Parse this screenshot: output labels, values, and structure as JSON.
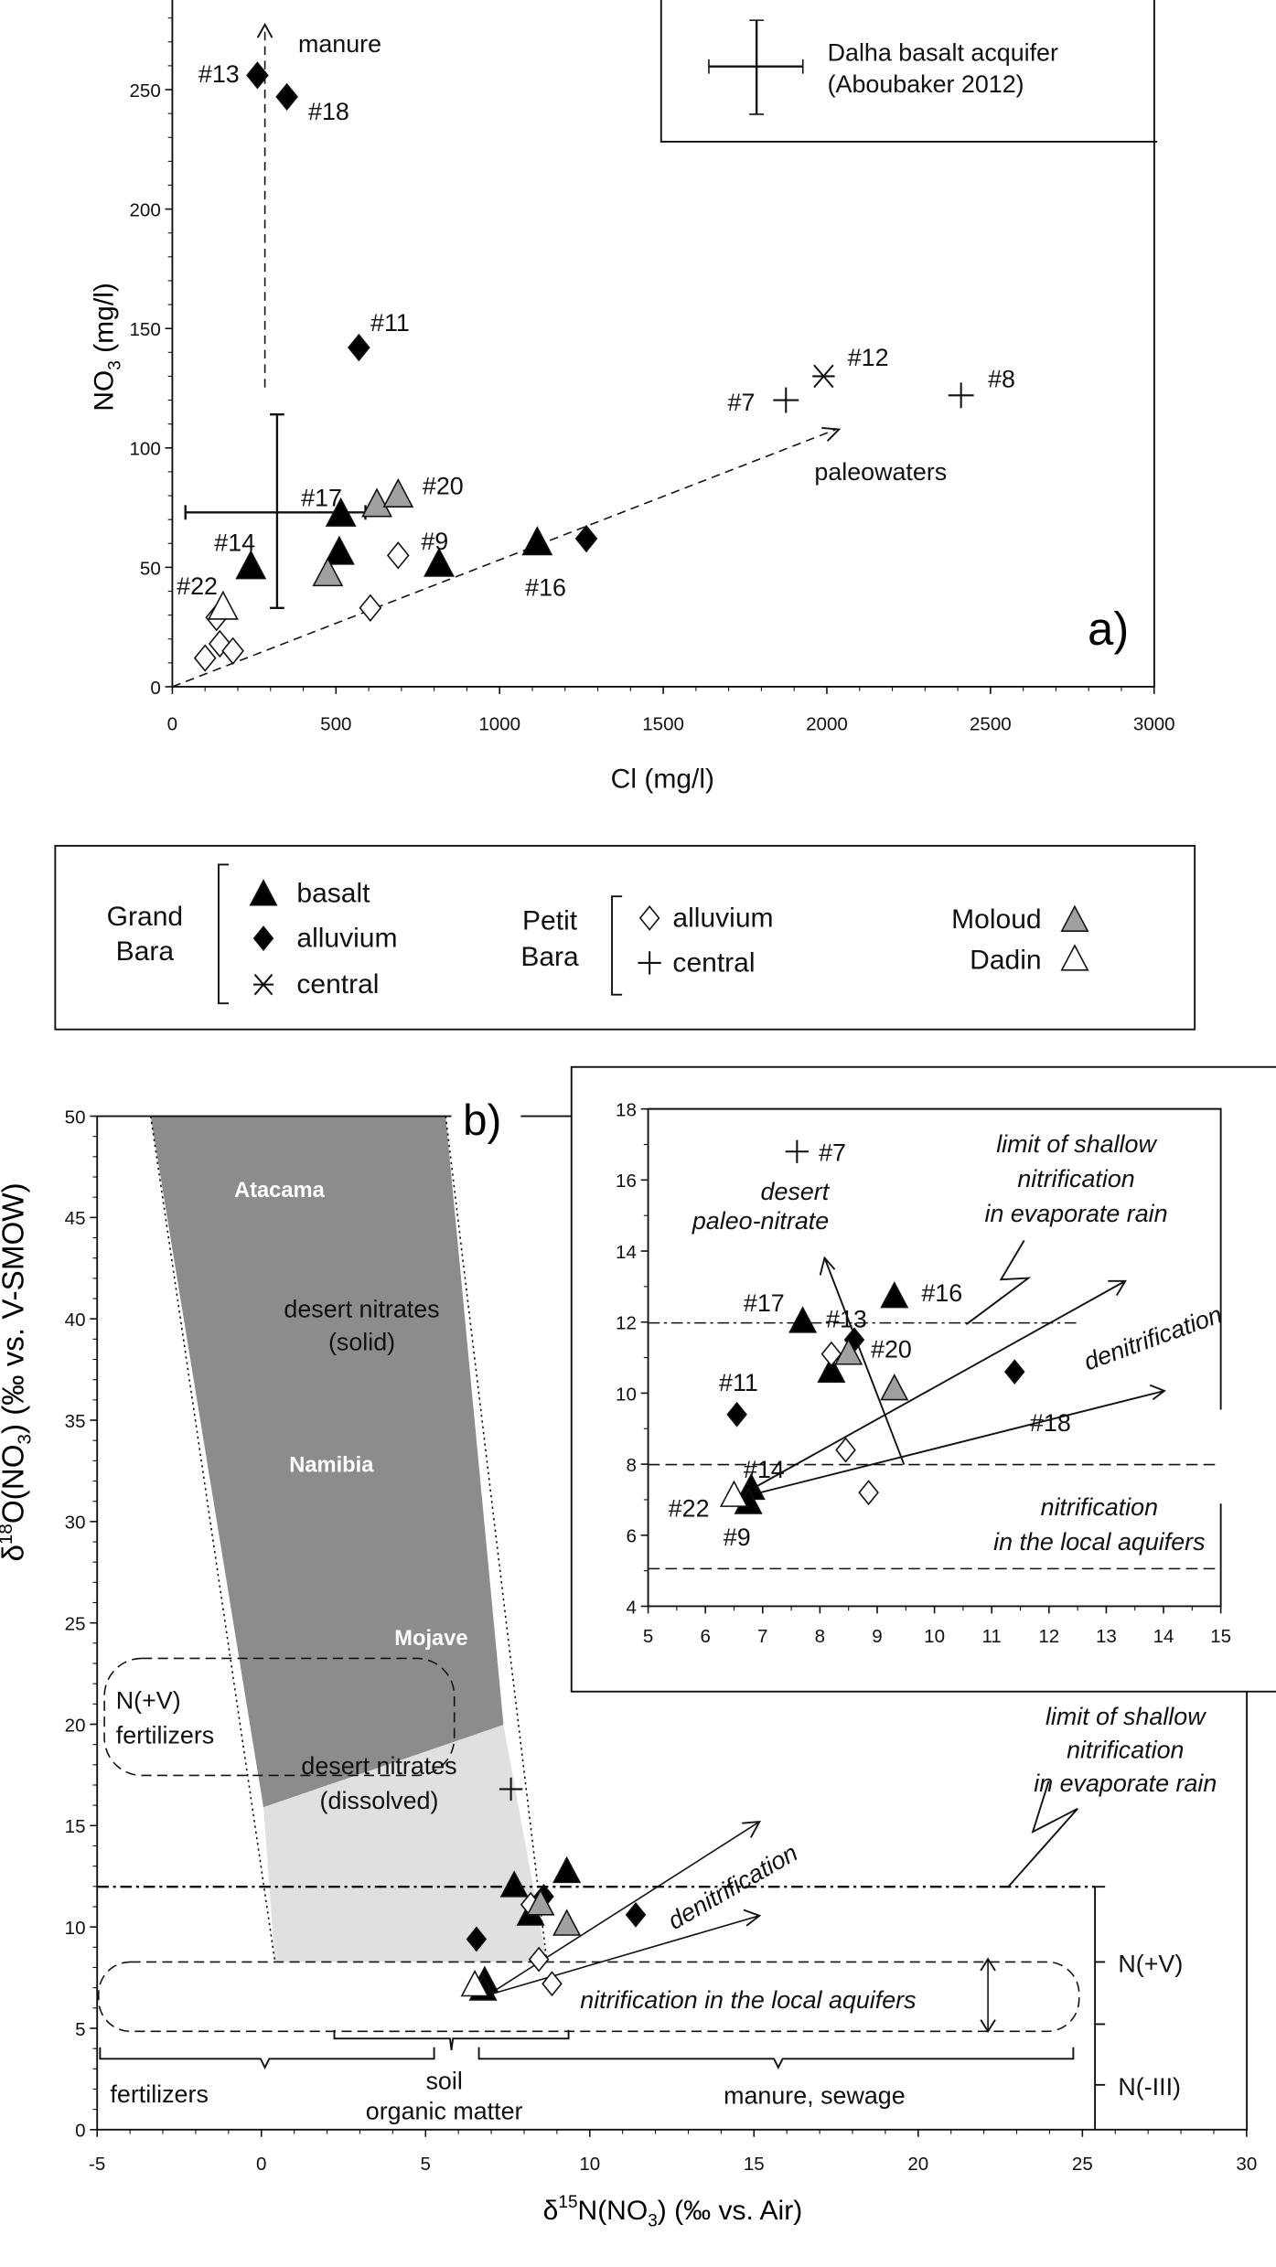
{
  "colors": {
    "black": "#000000",
    "gray": "#a0a0a0",
    "dark_band": "#8c8c8c",
    "light_band": "#e0e0e0",
    "white": "#ffffff"
  },
  "legend": {
    "grand_bara": [
      "Grand",
      "Bara"
    ],
    "gb_basalt": "basalt",
    "gb_alluvium": "alluvium",
    "gb_central": "central",
    "petit_bara": [
      "Petit",
      "Bara"
    ],
    "pb_alluvium": "alluvium",
    "pb_central": "central",
    "moloud": "Moloud",
    "dadin": "Dadin"
  },
  "chart_data": [
    {
      "panel": "a",
      "type": "scatter",
      "panel_label": "a)",
      "xlabel": "Cl (mg/l)",
      "ylabel": {
        "main": "NO",
        "sub": "3",
        "rest": " (mg/l)"
      },
      "xlim": [
        0,
        3000
      ],
      "ylim": [
        0,
        285
      ],
      "xticks": [
        0,
        500,
        1000,
        1500,
        2000,
        2500,
        3000
      ],
      "yticks": [
        0,
        50,
        100,
        150,
        200,
        250
      ],
      "series": [
        {
          "name": "Grand Bara basalt",
          "marker": "triangle",
          "fill": "#000000",
          "points": [
            [
              240,
              50
            ],
            [
              515,
              72
            ],
            [
              510,
              56
            ],
            [
              815,
              51
            ],
            [
              1115,
              60
            ]
          ]
        },
        {
          "name": "Grand Bara alluvium",
          "marker": "diamond",
          "fill": "#000000",
          "points": [
            [
              260,
              256
            ],
            [
              350,
              247
            ],
            [
              570,
              142
            ],
            [
              1265,
              62
            ]
          ]
        },
        {
          "name": "Grand Bara central",
          "marker": "asterisk",
          "fill": "#000000",
          "points": [
            [
              1990,
              130
            ]
          ]
        },
        {
          "name": "Petit Bara alluvium",
          "marker": "diamond",
          "fill": "#ffffff",
          "points": [
            [
              100,
              12
            ],
            [
              145,
              18
            ],
            [
              185,
              15
            ],
            [
              135,
              29
            ],
            [
              605,
              33
            ],
            [
              690,
              55
            ]
          ]
        },
        {
          "name": "Petit Bara central",
          "marker": "plus",
          "fill": "#000000",
          "points": [
            [
              1875,
              120
            ],
            [
              2410,
              122
            ]
          ]
        },
        {
          "name": "Moloud",
          "marker": "triangle",
          "fill": "#a0a0a0",
          "points": [
            [
              475,
              47
            ],
            [
              625,
              76
            ],
            [
              690,
              80
            ]
          ]
        },
        {
          "name": "Dadin",
          "marker": "triangle",
          "fill": "#ffffff",
          "points": [
            [
              155,
              33
            ]
          ]
        }
      ],
      "error_bar": {
        "label": [
          "Dalha basalt acquifer",
          "(Aboubaker 2012)"
        ],
        "x": 320,
        "y": 73,
        "xrange": [
          40,
          590
        ],
        "yrange": [
          33,
          114
        ]
      },
      "point_labels": [
        "#13",
        "#18",
        "#11",
        "#12",
        "#7",
        "#8",
        "#17",
        "#20",
        "#14",
        "#9",
        "#22",
        "#16"
      ],
      "annotations": {
        "manure": "manure",
        "paleowaters": "paleowaters"
      }
    },
    {
      "panel": "b",
      "type": "scatter",
      "panel_label": "b)",
      "xlabel": {
        "pre": "δ",
        "sup": "15",
        "main": "N(NO",
        "sub": "3",
        "rest": ") (‰ vs. Air)"
      },
      "ylabel": {
        "pre": "δ",
        "sup": "18",
        "main": "O(NO",
        "sub": "3",
        "rest": ") (‰ vs. V-SMOW)"
      },
      "xlim": [
        -5,
        30
      ],
      "ylim": [
        0,
        50
      ],
      "xticks": [
        -5,
        0,
        5,
        10,
        15,
        20,
        25,
        30
      ],
      "yticks": [
        0,
        5,
        10,
        15,
        20,
        25,
        30,
        35,
        40,
        45,
        50
      ],
      "series": [
        {
          "name": "Grand Bara basalt",
          "marker": "triangle",
          "fill": "#000000",
          "points": [
            [
              7.7,
              12
            ],
            [
              9.3,
              12.7
            ],
            [
              8.2,
              10.6
            ],
            [
              6.8,
              7.3
            ],
            [
              6.75,
              6.9
            ]
          ]
        },
        {
          "name": "Grand Bara alluvium",
          "marker": "diamond",
          "fill": "#000000",
          "points": [
            [
              6.55,
              9.4
            ],
            [
              8.6,
              11.5
            ],
            [
              11.4,
              10.6
            ]
          ]
        },
        {
          "name": "Petit Bara alluvium",
          "marker": "diamond",
          "fill": "#ffffff",
          "points": [
            [
              8.2,
              11.1
            ],
            [
              8.45,
              8.4
            ],
            [
              8.85,
              7.2
            ]
          ]
        },
        {
          "name": "Petit Bara central",
          "marker": "plus",
          "fill": "#000000",
          "points": [
            [
              7.6,
              16.8
            ]
          ]
        },
        {
          "name": "Moloud",
          "marker": "triangle",
          "fill": "#a0a0a0",
          "points": [
            [
              8.5,
              11.1
            ],
            [
              9.3,
              10.1
            ]
          ]
        },
        {
          "name": "Dadin",
          "marker": "triangle",
          "fill": "#ffffff",
          "points": [
            [
              6.5,
              7.1
            ]
          ]
        }
      ],
      "annotations": {
        "atacama": "Atacama",
        "desert_solid": [
          "desert nitrates",
          "(solid)"
        ],
        "namibia": "Namibia",
        "mojave": "Mojave",
        "desert_dissolved": [
          "desert nitrates",
          "(dissolved)"
        ],
        "nv_fert": [
          "N(+V)",
          "fertilizers"
        ],
        "limit": [
          "limit of shallow",
          "nitrification",
          "in evaporate rain"
        ],
        "denitrification": "denitrification",
        "nitrification_local": "nitrification in the local aquifers",
        "fertilizers": "fertilizers",
        "soil": [
          "soil",
          "organic matter"
        ],
        "manure_sewage": "manure, sewage",
        "n_plus_v": "N(+V)",
        "n_minus_iii": "N(-III)"
      }
    },
    {
      "panel": "b-inset",
      "type": "scatter",
      "xlim": [
        5,
        15
      ],
      "ylim": [
        4,
        18
      ],
      "xticks": [
        5,
        6,
        7,
        8,
        9,
        10,
        11,
        12,
        13,
        14,
        15
      ],
      "yticks": [
        4,
        6,
        8,
        10,
        12,
        14,
        16,
        18
      ],
      "point_labels": [
        "#7",
        "#17",
        "#13",
        "#16",
        "#20",
        "#11",
        "#18",
        "#14",
        "#22",
        "#9"
      ],
      "annotations": {
        "desert_paleo": [
          "desert",
          "paleo-nitrate"
        ],
        "limit": [
          "limit of shallow",
          "nitrification",
          "in evaporate rain"
        ],
        "denitrification": "denitrification",
        "nitrification": [
          "nitrification",
          "in the local aquifers"
        ]
      }
    }
  ]
}
